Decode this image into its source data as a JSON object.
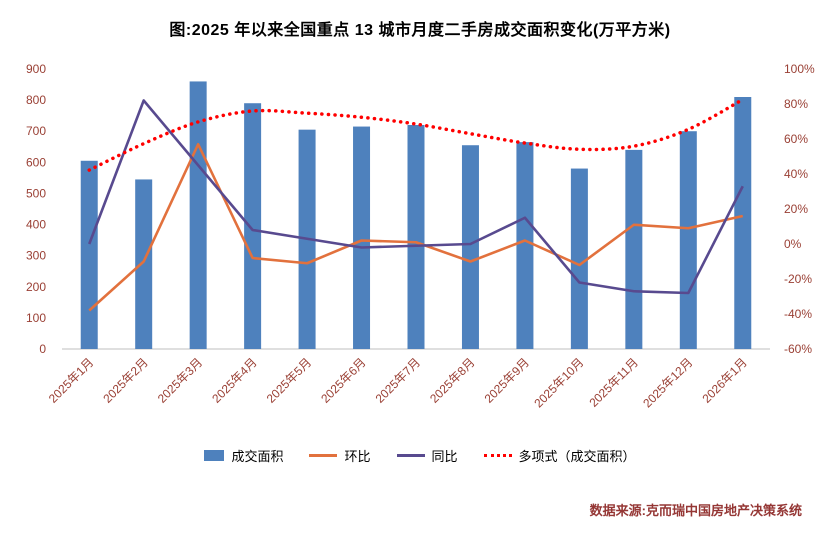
{
  "title": "图:2025 年以来全国重点 13 城市月度二手房成交面积变化(万平方米)",
  "source": "数据来源:克而瑞中国房地产决策系统",
  "colors": {
    "title_text": "#000000",
    "source_text": "#953735",
    "axis_labels": "#9A4035",
    "axis_line": "#BFBFBF",
    "background": "#FFFFFF",
    "bar": "#4E81BD",
    "mom_line": "#E2713D",
    "yoy_line": "#584A8F",
    "trend_line": "#FF0000"
  },
  "chart_data": {
    "type": "combo",
    "title": "图:2025 年以来全国重点 13 城市月度二手房成交面积变化(万平方米)",
    "categories": [
      "2025年1月",
      "2025年2月",
      "2025年3月",
      "2025年4月",
      "2025年5月",
      "2025年6月",
      "2025年7月",
      "2025年8月",
      "2025年9月",
      "2025年10月",
      "2025年11月",
      "2025年12月",
      "2026年1月"
    ],
    "left_axis": {
      "min": 0,
      "max": 900,
      "step": 100,
      "unit": "万平方米"
    },
    "right_axis": {
      "min": -60,
      "max": 100,
      "step": 20,
      "unit": "%"
    },
    "grid": false,
    "legend_position": "bottom",
    "series": [
      {
        "name": "成交面积",
        "type": "bar",
        "axis": "left",
        "color": "#4E81BD",
        "values": [
          605,
          545,
          860,
          790,
          705,
          715,
          720,
          655,
          665,
          580,
          640,
          700,
          810
        ]
      },
      {
        "name": "环比",
        "type": "line",
        "axis": "right",
        "color": "#E2713D",
        "unit": "%",
        "values": [
          -38,
          -10,
          57,
          -8,
          -11,
          2,
          1,
          -10,
          2,
          -12,
          11,
          9,
          16
        ]
      },
      {
        "name": "同比",
        "type": "line",
        "axis": "right",
        "color": "#584A8F",
        "unit": "%",
        "values": [
          0,
          82,
          45,
          8,
          3,
          -2,
          -1,
          0,
          15,
          -22,
          -27,
          -28,
          33
        ]
      },
      {
        "name": "多项式（成交面积）",
        "type": "dotted-line",
        "axis": "left",
        "color": "#FF0000",
        "values": [
          575,
          660,
          730,
          765,
          758,
          745,
          723,
          692,
          662,
          642,
          652,
          706,
          802
        ]
      }
    ]
  }
}
